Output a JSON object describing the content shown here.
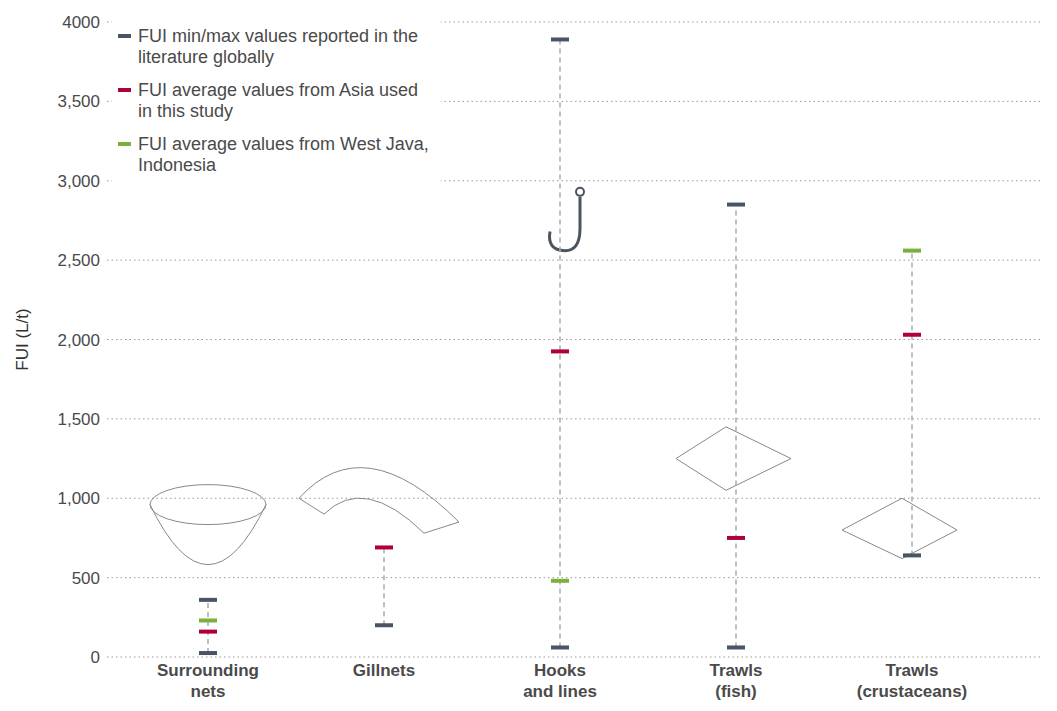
{
  "chart_data": {
    "type": "dot",
    "y_label": "FUI (L/t)",
    "categories": [
      "Surrounding nets",
      "Gillnets",
      "Hooks and lines",
      "Trawls (fish)",
      "Trawls (crustaceans)"
    ],
    "series": [
      {
        "name": "FUI min/max values reported in the literature globally",
        "color": "#4a5561",
        "marker": "dash",
        "values": [
          25,
          200,
          60,
          60,
          640
        ],
        "max": [
          360,
          null,
          3890,
          2850,
          null
        ]
      },
      {
        "name": "FUI average values from Asia used in this study",
        "color": "#b0003a",
        "marker": "dash",
        "values": [
          160,
          690,
          1925,
          750,
          2030
        ]
      },
      {
        "name": "FUI average values from West Java, Indonesia",
        "color": "#7ab040",
        "marker": "dash",
        "values": [
          230,
          null,
          480,
          null,
          2560
        ]
      }
    ],
    "ylim": [
      0,
      4000
    ],
    "yticks": [
      0,
      500,
      {
        "value": 1000,
        "label": "1,000"
      },
      {
        "value": 1500,
        "label": "1,500"
      },
      {
        "value": 2000,
        "label": "2,000"
      },
      {
        "value": 2500,
        "label": "2,500"
      },
      {
        "value": 3000,
        "label": "3,000"
      },
      {
        "value": 3500,
        "label": "3,500"
      },
      {
        "value": 4000,
        "label": "4000"
      }
    ],
    "grid": true,
    "legend": "top-left"
  }
}
